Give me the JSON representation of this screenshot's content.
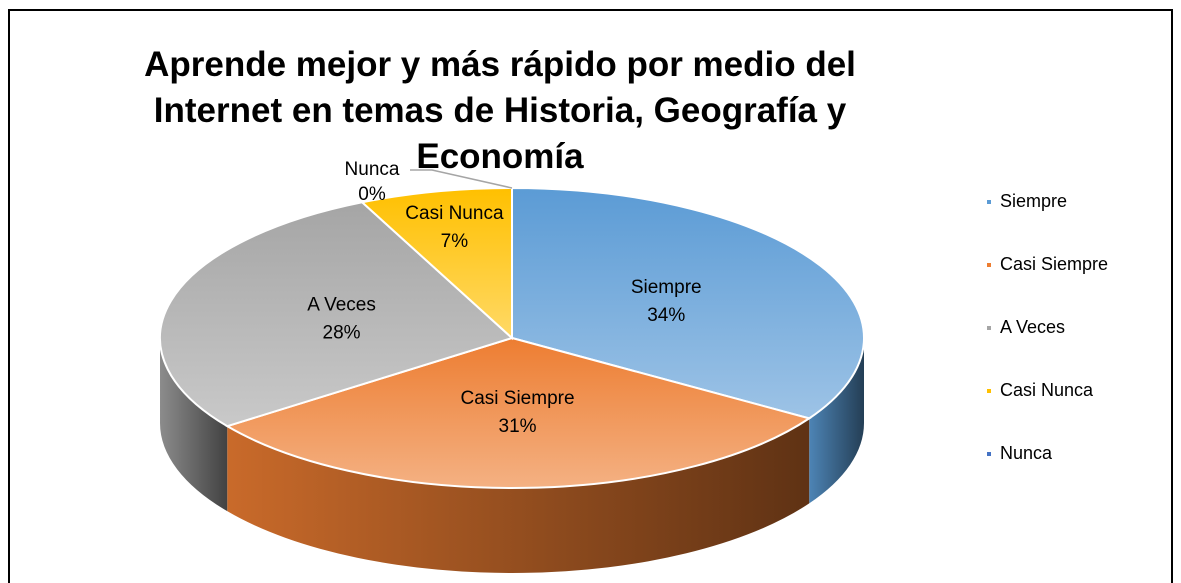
{
  "chart_data": {
    "type": "pie",
    "title": "Aprende mejor y más rápido  por medio del Internet en temas de Historia, Geografía y Economía",
    "categories": [
      "Siempre",
      "Casi Siempre",
      "A Veces",
      "Casi Nunca",
      "Nunca"
    ],
    "values": [
      34,
      31,
      28,
      7,
      0
    ],
    "value_labels": [
      "34%",
      "31%",
      "28%",
      "7%",
      "0%"
    ],
    "colors": [
      "#5b9bd5",
      "#ed7d31",
      "#a5a5a5",
      "#ffc000",
      "#4472c4"
    ],
    "legend": "right"
  }
}
